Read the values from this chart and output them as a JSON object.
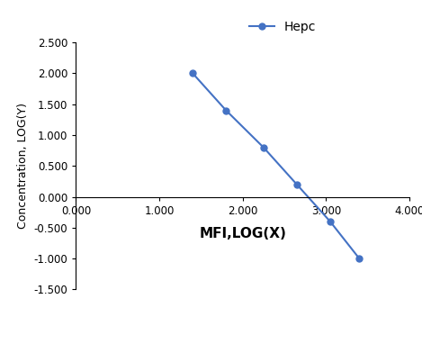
{
  "x": [
    1.4,
    1.8,
    2.25,
    2.65,
    3.05,
    3.4
  ],
  "y": [
    2.0,
    1.4,
    0.8,
    0.2,
    -0.4,
    -1.0
  ],
  "line_color": "#4472C4",
  "marker": "o",
  "marker_size": 5,
  "legend_label": "Hepc",
  "xlabel": "MFI,LOG(X)",
  "ylabel": "Concentration, LOG(Y)",
  "xlim": [
    0.0,
    4.0
  ],
  "ylim": [
    -1.5,
    2.5
  ],
  "xticks": [
    0.0,
    1.0,
    2.0,
    3.0,
    4.0
  ],
  "yticks": [
    -1.5,
    -1.0,
    -0.5,
    0.0,
    0.5,
    1.0,
    1.5,
    2.0,
    2.5
  ],
  "xlabel_fontsize": 11,
  "ylabel_fontsize": 9,
  "tick_fontsize": 8.5,
  "legend_fontsize": 10,
  "background_color": "#ffffff"
}
